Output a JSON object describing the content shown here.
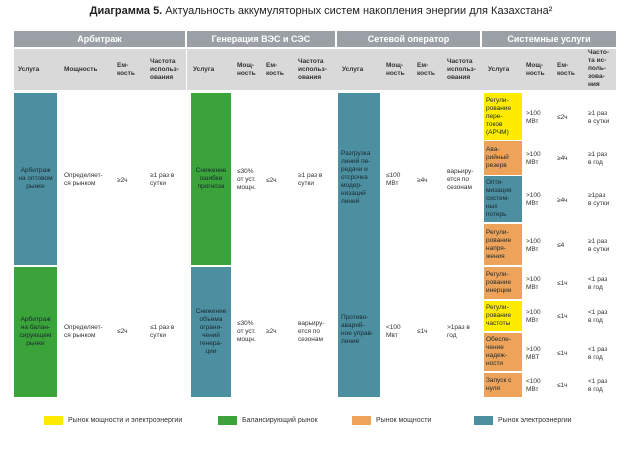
{
  "title": {
    "bold": "Диаграмма 5.",
    "rest": " Актуальность аккумуляторных систем накопления энергии для Казахстана²"
  },
  "colors": {
    "yellow": "#ffeb00",
    "green": "#3aa33a",
    "orange": "#eea35a",
    "teal": "#4c8fa0",
    "header_bar": "#9aa0a6",
    "header_bg": "#d9d9d9"
  },
  "sections": [
    "Арбитраж",
    "Генерация ВЭС и СЭС",
    "Сетевой оператор",
    "Системные услуги"
  ],
  "col_headers": {
    "service": "Услуга",
    "power": "Мощность",
    "capacity": "Ем-\nкость",
    "frequency": "Частота\nиспольз-\nования",
    "power_short": "Мощ-\nность",
    "capacity_short": "Ем-\nкость",
    "frequency_sys": "Часто-\nта ис-\nполь-\nзова-\nния"
  },
  "arbitrage": [
    {
      "service": "Арбитраж\nна оптовом\nрынке",
      "power": "Определяет-\nся рынком",
      "capacity": "≥2ч",
      "frequency": "≥1 раз в\nсутки"
    },
    {
      "service": "Арбитраж\nна балан-\nсирующем\nрынке",
      "power": "Определяет-\nся рынком",
      "capacity": "≤2ч",
      "frequency": "≤1 раз в\nсутки"
    }
  ],
  "generation": [
    {
      "service": "Снижение\nошибки\nпрогноза",
      "power": "≤30%\nот уст.\nмощн.",
      "capacity": "≤2ч",
      "frequency": "≥1 раз в\nсутки"
    },
    {
      "service": "Снижение\nобъема\nограни-\nчений\nгенера-\nции",
      "power": "≤30%\nот уст.\nмощн.",
      "capacity": "≥2ч",
      "frequency": "варьиру-\nется по\nсезонам"
    }
  ],
  "network": [
    {
      "service": "Разгрузка\nлиний пе-\nредачи и\nотсрочка\nмодер-\nнизаций\nлиний",
      "power": "≤100\nМВт",
      "capacity": "≥4ч",
      "frequency": "варьиру-\nется по\nсезонам"
    },
    {
      "service": "Противо-\nаварий-\nное управ-\nление",
      "power": "<100\nМвт",
      "capacity": "≤1ч",
      "frequency": ">1раз в\nгод"
    }
  ],
  "system": [
    {
      "service": "Регули-\nрование\nпере-\nтоков\n(АРЧМ)",
      "power": ">100\nМВт",
      "capacity": "≤2ч",
      "frequency": "≥1 раз\nв сутки"
    },
    {
      "service": "Ава-\nрийный\nрезерв",
      "power": ">100\nМВт",
      "capacity": "≥4ч",
      "frequency": "≥1 раз\nв год"
    },
    {
      "service": "Опти-\nмизация\nсистем-\nных\nпотерь",
      "power": ">100\nМВт",
      "capacity": "≥4ч",
      "frequency": "≥1раз\nв сутки"
    },
    {
      "service": "Регули-\nрование\nнапря-\nжения",
      "power": ">100\nМВт",
      "capacity": "≤4",
      "frequency": "≥1 раз\nв сутки"
    },
    {
      "service": "Регули-\nрование\nинерции",
      "power": ">100\nМВт",
      "capacity": "≤1ч",
      "frequency": "<1 раз\nв год"
    },
    {
      "service": "Регули-\nрование\nчастоты",
      "power": ">100\nМВт",
      "capacity": "≤1ч",
      "frequency": "<1 раз\nв год"
    },
    {
      "service": "Обеспе-\nчение\nнадеж-\nности",
      "power": ">100\nМВТ",
      "capacity": "≤1ч",
      "frequency": "<1 раз\nв год"
    },
    {
      "service": "Запуск с\nнуля",
      "power": "<100\nМВт",
      "capacity": "≤1ч",
      "frequency": "<1 раз\nв год"
    }
  ],
  "legend": [
    {
      "label": "Рынок мощности и электроэнергии",
      "color": "#ffeb00"
    },
    {
      "label": "Балансирующий рынок",
      "color": "#3aa33a"
    },
    {
      "label": "Рынок мощности",
      "color": "#eea35a"
    },
    {
      "label": "Рынок электроэнергии",
      "color": "#4c8fa0"
    }
  ]
}
